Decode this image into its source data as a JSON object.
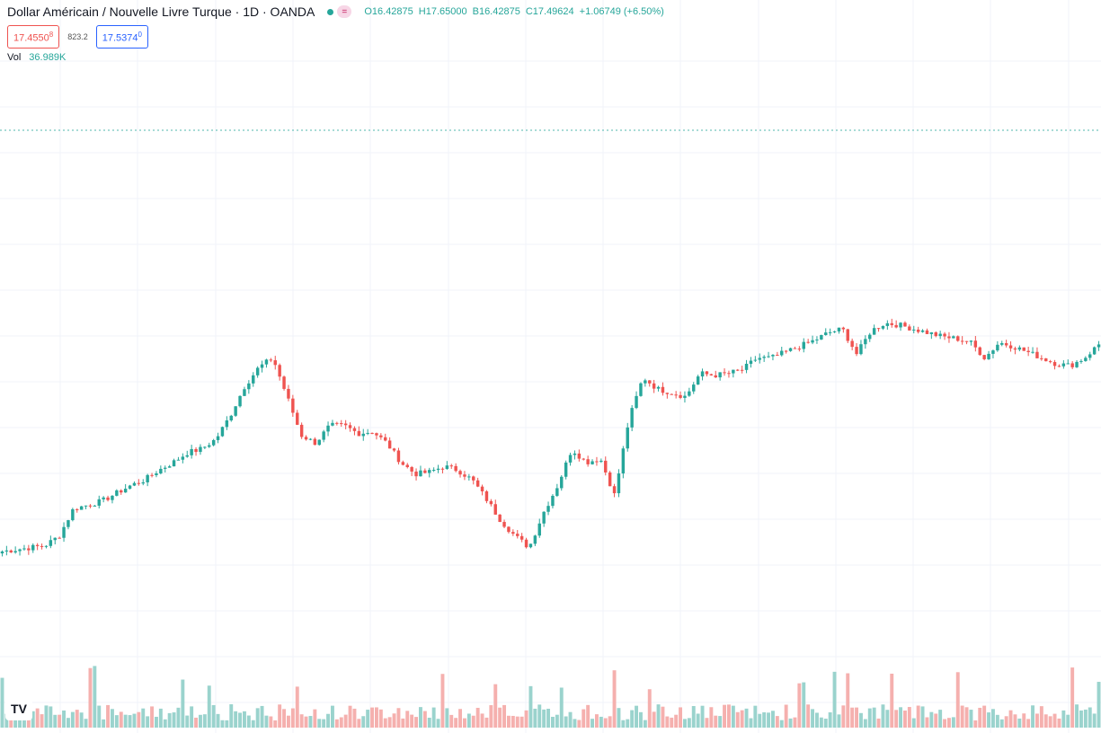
{
  "header": {
    "title": "Dollar Américain / Nouvelle Livre Turque · 1D · OANDA",
    "eq_symbol": "=",
    "ohlc": {
      "open": "O16.42875",
      "high": "H17.65000",
      "low": "B16.42875",
      "close": "C17.49624",
      "change": "+1.06749 (+6.50%)"
    },
    "sell_price": "17.4550",
    "sell_price_sup": "8",
    "spread": "823.2",
    "buy_price": "17.5374",
    "buy_price_sup": "0",
    "volume_label": "Vol",
    "volume_value": "36.989K"
  },
  "logo_text": "TV",
  "colors": {
    "up": "#26a69a",
    "down": "#ef5350",
    "vol_up": "#9ad3cd",
    "vol_down": "#f5b0ae",
    "grid": "#f0f3fa",
    "dotted_line": "#26a69a"
  },
  "chart_data": {
    "type": "candlestick",
    "title": "Dollar Américain / Nouvelle Livre Turque · 1D · OANDA",
    "x_axis": "daily sessions (dates not shown)",
    "y_axis": "price (no scale shown)",
    "close_path": [
      16.4,
      16.41,
      16.42,
      16.43,
      16.48,
      16.62,
      16.64,
      16.66,
      16.7,
      16.74,
      16.77,
      16.82,
      16.86,
      16.91,
      16.93,
      16.98,
      17.1,
      17.25,
      17.35,
      17.4,
      17.2,
      17.0,
      16.96,
      17.05,
      17.05,
      17.01,
      17.02,
      16.96,
      16.86,
      16.8,
      16.81,
      16.84,
      16.82,
      16.77,
      16.67,
      16.56,
      16.48,
      16.42,
      16.6,
      16.74,
      16.93,
      16.86,
      16.88,
      16.69,
      17.08,
      17.3,
      17.24,
      17.22,
      17.2,
      17.32,
      17.31,
      17.32,
      17.34,
      17.4,
      17.4,
      17.43,
      17.46,
      17.49,
      17.53,
      17.55,
      17.42,
      17.54,
      17.58,
      17.57,
      17.55,
      17.53,
      17.51,
      17.5,
      17.48,
      17.4,
      17.48,
      17.46,
      17.43,
      17.4,
      17.37,
      17.36,
      17.4,
      17.47
    ],
    "last_close": 17.49624,
    "volume_last": "36.989K"
  }
}
